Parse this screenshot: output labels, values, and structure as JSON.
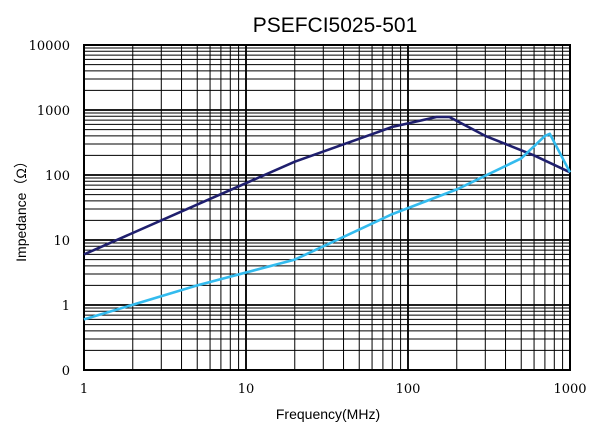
{
  "chart_data": {
    "type": "line",
    "title": "PSEFCI5025-501",
    "xlabel": "Frequency(MHz)",
    "ylabel": "Impedance（Ω）",
    "x_scale": "log",
    "y_scale": "log",
    "xlim": [
      1,
      1000
    ],
    "ylim": [
      0.1,
      10000
    ],
    "x_ticks": [
      {
        "value": 1,
        "label": "1"
      },
      {
        "value": 10,
        "label": "10"
      },
      {
        "value": 100,
        "label": "100"
      },
      {
        "value": 1000,
        "label": "1000"
      }
    ],
    "y_ticks": [
      {
        "value": 0.1,
        "label": "0"
      },
      {
        "value": 1,
        "label": "1"
      },
      {
        "value": 10,
        "label": "10"
      },
      {
        "value": 100,
        "label": "100"
      },
      {
        "value": 1000,
        "label": "1000"
      },
      {
        "value": 10000,
        "label": "10000"
      }
    ],
    "grid": true,
    "series": [
      {
        "color": "#1f1f6e",
        "x": [
          1,
          5,
          20,
          80,
          150,
          180,
          300,
          600,
          1000
        ],
        "y": [
          6,
          35,
          160,
          550,
          780,
          780,
          400,
          200,
          110
        ]
      },
      {
        "color": "#33bbee",
        "x": [
          1,
          5,
          20,
          80,
          200,
          500,
          700,
          750,
          1000
        ],
        "y": [
          0.6,
          2,
          5,
          25,
          60,
          180,
          400,
          430,
          110
        ]
      }
    ]
  }
}
